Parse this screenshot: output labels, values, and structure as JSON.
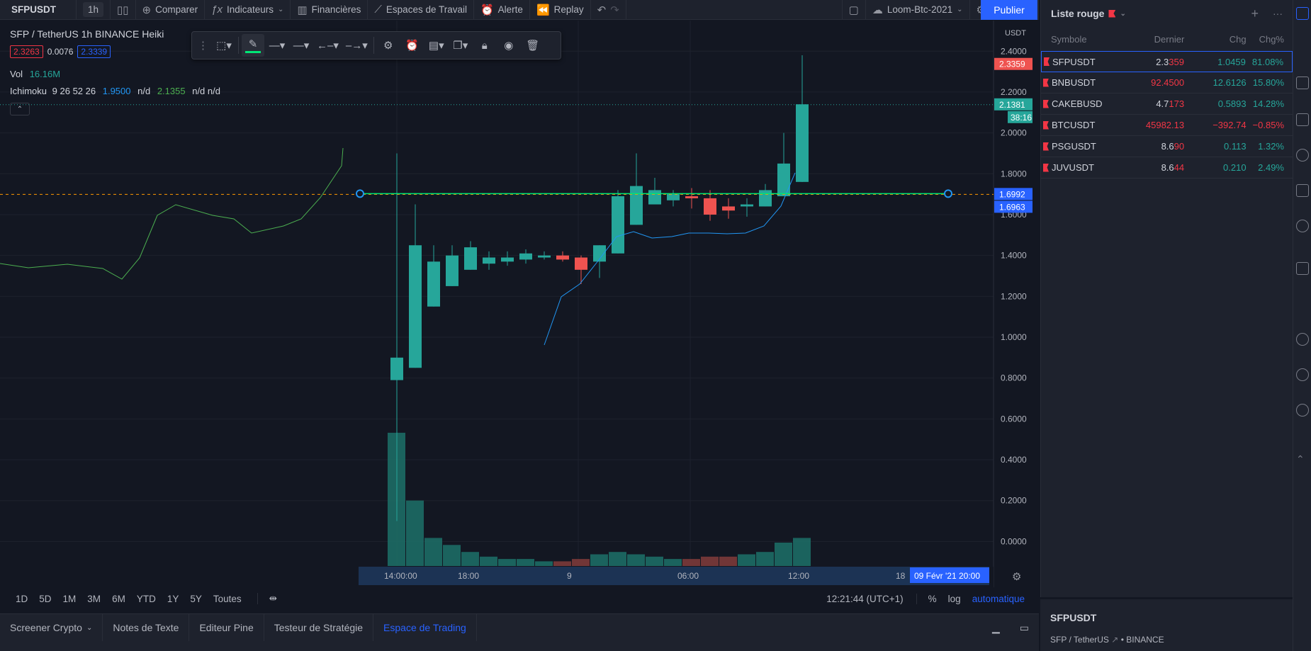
{
  "toolbar": {
    "symbol": "SFPUSDT",
    "interval": "1h",
    "compare": "Comparer",
    "indicators": "Indicateurs",
    "financials": "Financières",
    "workspaces": "Espaces de Travail",
    "alert": "Alerte",
    "replay": "Replay",
    "layout_name": "Loom-Btc-2021",
    "publish": "Publier"
  },
  "legend": {
    "title": "SFP / TetherUS  1h  BINANCE  Heiki",
    "ohlc_low": "2.3263",
    "ohlc_change": "0.0076",
    "ohlc_close": "2.3339",
    "vol_label": "Vol",
    "vol_value": "16.16M",
    "ichimoku_label": "Ichimoku",
    "ichimoku_params": "9 26 52 26",
    "ichimoku_v1": "1.9500",
    "ichimoku_v2": "n/d",
    "ichimoku_v3": "2.1355",
    "ichimoku_v4": "n/d n/d"
  },
  "price_axis": {
    "currency": "USDT",
    "ticks": [
      "2.4000",
      "2.2000",
      "2.0000",
      "1.8000",
      "1.6000",
      "1.4000",
      "1.2000",
      "1.0000",
      "0.8000",
      "0.6000",
      "0.4000",
      "0.2000",
      "0.0000"
    ],
    "label_last": "2.3359",
    "label_ichimoku": "2.1381",
    "label_countdown": "38:16",
    "label_line1": "1.6992",
    "label_line2": "1.6963"
  },
  "time_axis": {
    "ticks": [
      "14:00:00",
      "18:00",
      "9",
      "06:00",
      "12:00",
      "18"
    ],
    "crosshair_label": "09 Févr '21   20:00"
  },
  "intervals": [
    "1D",
    "5D",
    "1M",
    "3M",
    "6M",
    "YTD",
    "1Y",
    "5Y",
    "Toutes"
  ],
  "status": {
    "clock": "12:21:44 (UTC+1)",
    "percent": "%",
    "log": "log",
    "auto": "automatique"
  },
  "bottom_tabs": [
    "Screener Crypto",
    "Notes de Texte",
    "Editeur Pine",
    "Testeur de Stratégie",
    "Espace de Trading"
  ],
  "watchlist": {
    "title": "Liste rouge",
    "columns": {
      "symbol": "Symbole",
      "last": "Dernier",
      "chg": "Chg",
      "chg_pct": "Chg%"
    },
    "rows": [
      {
        "symbol": "SFPUSDT",
        "last_a": "2.3",
        "last_b": "359",
        "chg": "1.0459",
        "pct": "81.08%",
        "dir": "pos"
      },
      {
        "symbol": "BNBUSDT",
        "last_a": "92.4500",
        "last_b": "",
        "chg": "12.6126",
        "pct": "15.80%",
        "dir": "pos",
        "last_color": "neg"
      },
      {
        "symbol": "CAKEBUSD",
        "last_a": "4.7",
        "last_b": "173",
        "chg": "0.5893",
        "pct": "14.28%",
        "dir": "pos"
      },
      {
        "symbol": "BTCUSDT",
        "last_a": "45982.13",
        "last_b": "",
        "chg": "−392.74",
        "pct": "−0.85%",
        "dir": "neg",
        "last_color": "neg"
      },
      {
        "symbol": "PSGUSDT",
        "last_a": "8.6",
        "last_b": "90",
        "chg": "0.113",
        "pct": "1.32%",
        "dir": "pos"
      },
      {
        "symbol": "JUVUSDT",
        "last_a": "8.6",
        "last_b": "44",
        "chg": "0.210",
        "pct": "2.49%",
        "dir": "pos",
        "last_b_color": "neg"
      }
    ]
  },
  "detail": {
    "symbol": "SFPUSDT",
    "subtitle": "SFP / TetherUS",
    "exchange": "BINANCE"
  },
  "chart_data": {
    "type": "candlestick",
    "x": [
      "14:00",
      "15:00",
      "16:00",
      "17:00",
      "18:00",
      "19:00",
      "20:00",
      "21:00",
      "22:00",
      "23:00",
      "00:00",
      "01:00",
      "02:00",
      "03:00",
      "04:00",
      "05:00",
      "06:00",
      "07:00",
      "08:00",
      "09:00",
      "10:00",
      "11:00",
      "12:00"
    ],
    "candles": [
      {
        "o": 0.79,
        "h": 1.9,
        "l": 0.1,
        "c": 0.9,
        "v": 0.57
      },
      {
        "o": 0.85,
        "h": 1.65,
        "l": 0.85,
        "c": 1.45,
        "v": 0.28
      },
      {
        "o": 1.15,
        "h": 1.45,
        "l": 1.15,
        "c": 1.37,
        "v": 0.12
      },
      {
        "o": 1.25,
        "h": 1.45,
        "l": 1.25,
        "c": 1.4,
        "v": 0.09
      },
      {
        "o": 1.33,
        "h": 1.47,
        "l": 1.33,
        "c": 1.44,
        "v": 0.06
      },
      {
        "o": 1.36,
        "h": 1.42,
        "l": 1.33,
        "c": 1.39,
        "v": 0.04
      },
      {
        "o": 1.37,
        "h": 1.42,
        "l": 1.35,
        "c": 1.39,
        "v": 0.03
      },
      {
        "o": 1.38,
        "h": 1.43,
        "l": 1.36,
        "c": 1.41,
        "v": 0.03
      },
      {
        "o": 1.39,
        "h": 1.42,
        "l": 1.38,
        "c": 1.4,
        "v": 0.02
      },
      {
        "o": 1.4,
        "h": 1.42,
        "l": 1.37,
        "c": 1.38,
        "v": 0.02,
        "down": true
      },
      {
        "o": 1.39,
        "h": 1.4,
        "l": 1.26,
        "c": 1.33,
        "v": 0.03,
        "down": true
      },
      {
        "o": 1.37,
        "h": 1.45,
        "l": 1.29,
        "c": 1.45,
        "v": 0.05
      },
      {
        "o": 1.41,
        "h": 1.72,
        "l": 1.41,
        "c": 1.69,
        "v": 0.06
      },
      {
        "o": 1.55,
        "h": 1.9,
        "l": 1.55,
        "c": 1.74,
        "v": 0.05
      },
      {
        "o": 1.65,
        "h": 1.78,
        "l": 1.65,
        "c": 1.72,
        "v": 0.04
      },
      {
        "o": 1.67,
        "h": 1.72,
        "l": 1.64,
        "c": 1.7,
        "v": 0.03
      },
      {
        "o": 1.69,
        "h": 1.73,
        "l": 1.63,
        "c": 1.68,
        "v": 0.03,
        "down": true
      },
      {
        "o": 1.68,
        "h": 1.72,
        "l": 1.57,
        "c": 1.6,
        "v": 0.04,
        "down": true
      },
      {
        "o": 1.64,
        "h": 1.68,
        "l": 1.58,
        "c": 1.62,
        "v": 0.04,
        "down": true
      },
      {
        "o": 1.64,
        "h": 1.68,
        "l": 1.59,
        "c": 1.65,
        "v": 0.05
      },
      {
        "o": 1.64,
        "h": 1.75,
        "l": 1.64,
        "c": 1.72,
        "v": 0.06
      },
      {
        "o": 1.69,
        "h": 2.0,
        "l": 1.69,
        "c": 1.85,
        "v": 0.1
      },
      {
        "o": 1.76,
        "h": 2.38,
        "l": 1.76,
        "c": 2.14,
        "v": 0.12
      }
    ],
    "horizontal_line": 1.6992,
    "ymin": -0.12,
    "ymax": 2.55
  }
}
